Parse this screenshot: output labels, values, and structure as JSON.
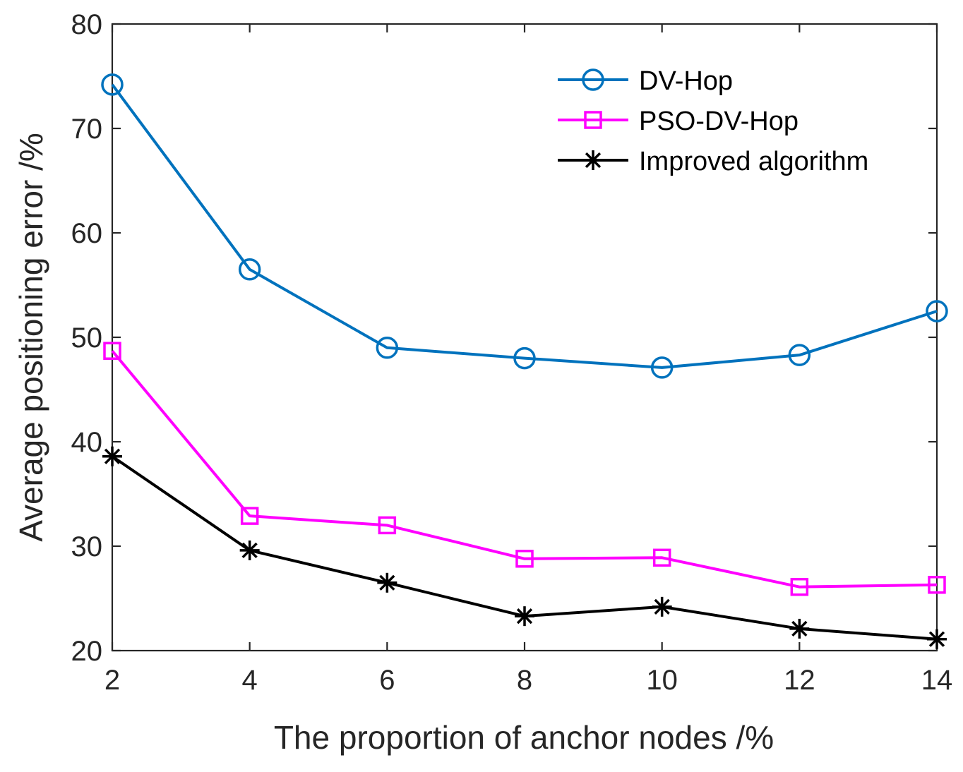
{
  "chart_data": {
    "type": "line",
    "title": "",
    "xlabel": "The proportion of anchor nodes /%",
    "ylabel": "Average positioning error /%",
    "x": [
      2,
      4,
      6,
      8,
      10,
      12,
      14
    ],
    "xlim": [
      2,
      14
    ],
    "ylim": [
      20,
      80
    ],
    "xticks": [
      "2",
      "4",
      "6",
      "8",
      "10",
      "12",
      "14"
    ],
    "yticks": [
      "20",
      "30",
      "40",
      "50",
      "60",
      "70",
      "80"
    ],
    "grid": false,
    "legend_position": "top-right",
    "series": [
      {
        "name": "DV-Hop",
        "marker": "circle",
        "color": "#0072BD",
        "values": [
          74.2,
          56.5,
          49.0,
          48.0,
          47.1,
          48.3,
          52.5
        ]
      },
      {
        "name": "PSO-DV-Hop",
        "marker": "square",
        "color": "#FF00FF",
        "values": [
          48.7,
          32.9,
          32.0,
          28.8,
          28.9,
          26.1,
          26.3
        ]
      },
      {
        "name": "Improved algorithm",
        "marker": "asterisk",
        "color": "#000000",
        "values": [
          38.6,
          29.6,
          26.5,
          23.3,
          24.2,
          22.1,
          21.1
        ]
      }
    ]
  }
}
